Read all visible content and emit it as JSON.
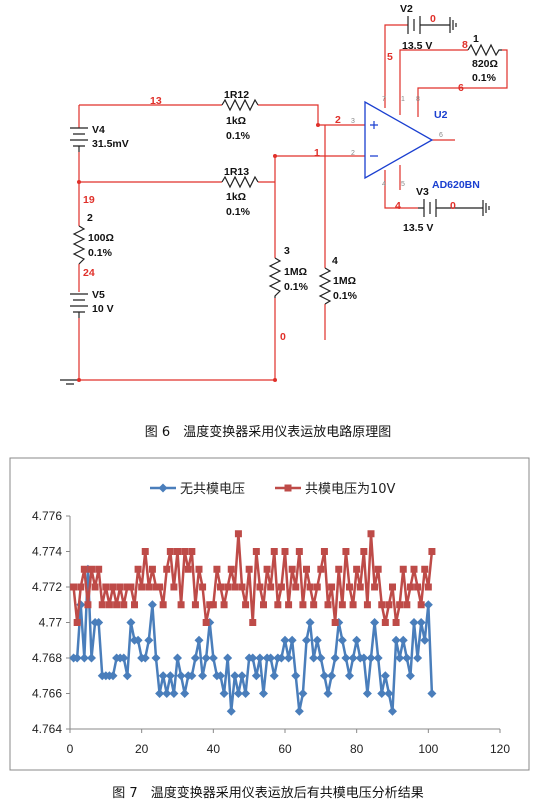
{
  "circuit": {
    "labels": [
      "V2",
      "0",
      "13.5 V",
      "1",
      "820Ω",
      "0.1%",
      "8",
      "5",
      "6",
      "U2",
      "13",
      "1R12",
      "1kΩ",
      "0.1%",
      "2",
      "V4",
      "31.5mV",
      "1R13",
      "1kΩ",
      "0.1%",
      "1",
      "19",
      "2",
      "100Ω",
      "0.1%",
      "24",
      "V5",
      "10 V",
      "3",
      "1MΩ",
      "0.1%",
      "4",
      "1MΩ",
      "0.1%",
      "0",
      "AD620BN",
      "V3",
      "4",
      "0",
      "13.5 V",
      "3",
      "2",
      "7",
      "1",
      "8",
      "6",
      "4",
      "5"
    ]
  },
  "figure6_caption": "图 6　温度变换器采用仪表运放电路原理图",
  "chart_data": {
    "type": "line",
    "x": [
      1,
      2,
      3,
      4,
      5,
      6,
      7,
      8,
      9,
      10,
      11,
      12,
      13,
      14,
      15,
      16,
      17,
      18,
      19,
      20,
      21,
      22,
      23,
      24,
      25,
      26,
      27,
      28,
      29,
      30,
      31,
      32,
      33,
      34,
      35,
      36,
      37,
      38,
      39,
      40,
      41,
      42,
      43,
      44,
      45,
      46,
      47,
      48,
      49,
      50,
      51,
      52,
      53,
      54,
      55,
      56,
      57,
      58,
      59,
      60,
      61,
      62,
      63,
      64,
      65,
      66,
      67,
      68,
      69,
      70,
      71,
      72,
      73,
      74,
      75,
      76,
      77,
      78,
      79,
      80,
      81,
      82,
      83,
      84,
      85,
      86,
      87,
      88,
      89,
      90,
      91,
      92,
      93,
      94,
      95,
      96,
      97,
      98,
      99,
      100,
      101
    ],
    "series": [
      {
        "name": "无共模电压",
        "color": "#4a7ebb",
        "marker": "diamond",
        "values": [
          4.768,
          4.768,
          4.771,
          4.768,
          4.773,
          4.768,
          4.77,
          4.77,
          4.767,
          4.767,
          4.767,
          4.767,
          4.768,
          4.768,
          4.768,
          4.767,
          4.77,
          4.769,
          4.769,
          4.768,
          4.768,
          4.769,
          4.771,
          4.768,
          4.766,
          4.767,
          4.766,
          4.767,
          4.766,
          4.768,
          4.767,
          4.766,
          4.767,
          4.767,
          4.768,
          4.769,
          4.767,
          4.768,
          4.77,
          4.768,
          4.767,
          4.767,
          4.766,
          4.768,
          4.765,
          4.767,
          4.766,
          4.767,
          4.766,
          4.768,
          4.768,
          4.767,
          4.768,
          4.766,
          4.768,
          4.768,
          4.767,
          4.768,
          4.768,
          4.769,
          4.768,
          4.769,
          4.767,
          4.765,
          4.766,
          4.769,
          4.77,
          4.768,
          4.769,
          4.768,
          4.767,
          4.766,
          4.767,
          4.768,
          4.77,
          4.769,
          4.768,
          4.767,
          4.768,
          4.769,
          4.768,
          4.768,
          4.766,
          4.768,
          4.77,
          4.768,
          4.766,
          4.767,
          4.766,
          4.765,
          4.769,
          4.768,
          4.769,
          4.768,
          4.767,
          4.77,
          4.768,
          4.77,
          4.769,
          4.771,
          4.766
        ]
      },
      {
        "name": "共模电压为10V",
        "color": "#be4b48",
        "marker": "square",
        "values": [
          4.772,
          4.77,
          4.772,
          4.773,
          4.771,
          4.773,
          4.772,
          4.773,
          4.771,
          4.772,
          4.771,
          4.772,
          4.771,
          4.772,
          4.771,
          4.772,
          4.772,
          4.771,
          4.773,
          4.772,
          4.774,
          4.772,
          4.773,
          4.772,
          4.772,
          4.771,
          4.773,
          4.774,
          4.772,
          4.774,
          4.771,
          4.774,
          4.773,
          4.774,
          4.771,
          4.773,
          4.772,
          4.77,
          4.771,
          4.771,
          4.773,
          4.772,
          4.771,
          4.772,
          4.773,
          4.772,
          4.775,
          4.772,
          4.771,
          4.773,
          4.77,
          4.774,
          4.772,
          4.771,
          4.773,
          4.772,
          4.774,
          4.771,
          4.772,
          4.774,
          4.771,
          4.773,
          4.772,
          4.774,
          4.771,
          4.773,
          4.772,
          4.771,
          4.772,
          4.773,
          4.774,
          4.771,
          4.772,
          4.77,
          4.773,
          4.771,
          4.774,
          4.772,
          4.771,
          4.773,
          4.772,
          4.774,
          4.771,
          4.775,
          4.772,
          4.773,
          4.771,
          4.77,
          4.771,
          4.772,
          4.77,
          4.771,
          4.773,
          4.771,
          4.772,
          4.773,
          4.772,
          4.771,
          4.773,
          4.772,
          4.774
        ]
      }
    ],
    "xlim": [
      0,
      120
    ],
    "xticks": [
      0,
      20,
      40,
      60,
      80,
      100,
      120
    ],
    "ylim": [
      4.764,
      4.776
    ],
    "yticks": [
      4.764,
      4.766,
      4.768,
      4.77,
      4.772,
      4.774,
      4.776
    ],
    "legend": "top"
  },
  "figure7_caption": "图 7　温度变换器采用仪表运放后有共模电压分析结果"
}
